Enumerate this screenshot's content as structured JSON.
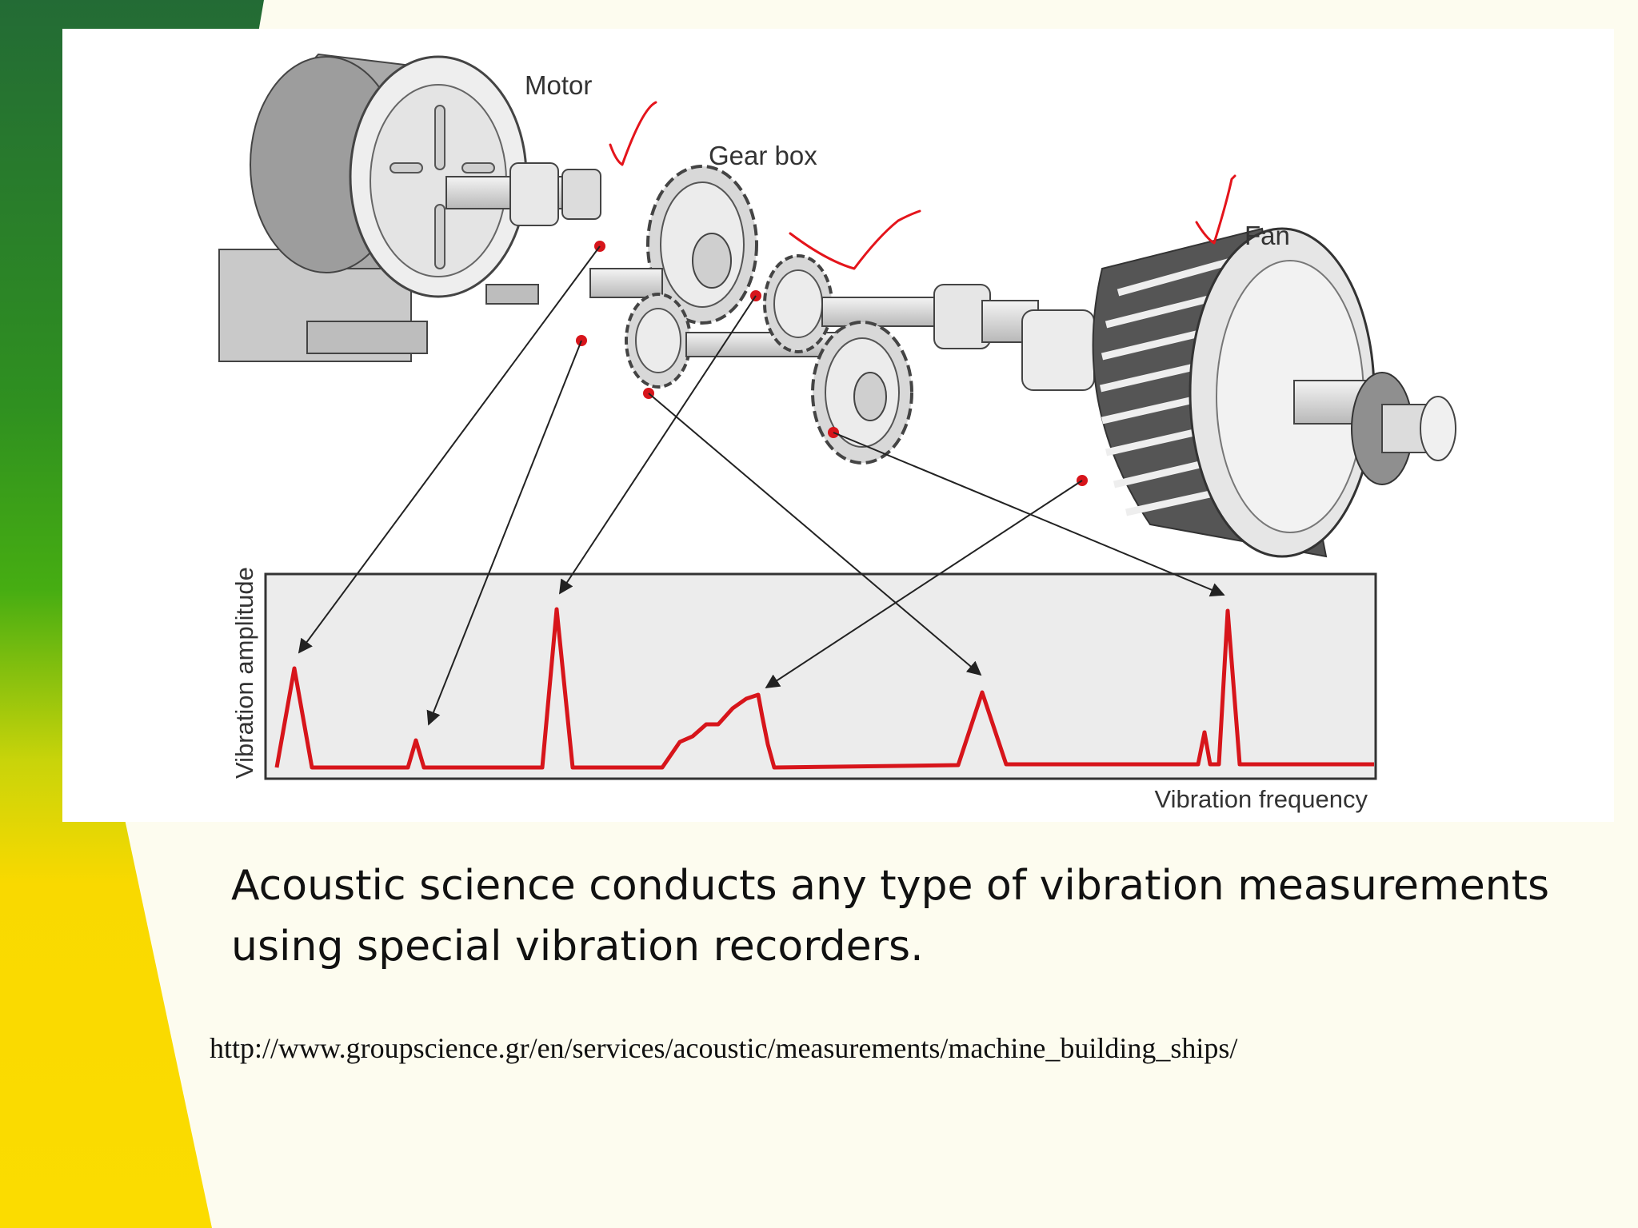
{
  "diagram": {
    "labels": {
      "motor": "Motor",
      "gearbox": "Gear box",
      "fan": "Fan",
      "y_axis": "Vibration amplitude",
      "x_axis": "Vibration frequency"
    }
  },
  "caption": {
    "line1": "Acoustic science conducts any type of vibration measurements",
    "line2": "using special vibration recorders."
  },
  "source_url": "http://www.groupscience.gr/en/services/acoustic/measurements/machine_building_ships/",
  "colors": {
    "background": "#fdfcef",
    "gradient_top": "#236b35",
    "gradient_mid": "#3aa817",
    "gradient_bottom": "#f9d900",
    "signal": "#d7151b",
    "annotation": "#e4141b"
  }
}
